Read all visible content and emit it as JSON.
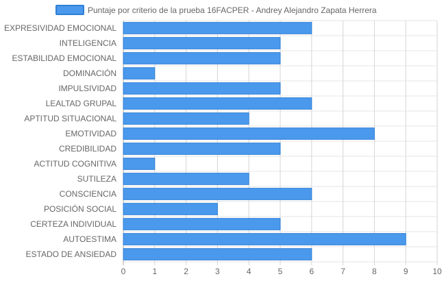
{
  "chart_data": {
    "type": "bar",
    "orientation": "horizontal",
    "categories": [
      "EXPRESIVIDAD EMOCIONAL",
      "INTELIGENCIA",
      "ESTABILIDAD EMOCIONAL",
      "DOMINACIÓN",
      "IMPULSIVIDAD",
      "LEALTAD GRUPAL",
      "APTITUD SITUACIONAL",
      "EMOTIVIDAD",
      "CREDIBILIDAD",
      "ACTITUD COGNITIVA",
      "SUTILEZA",
      "CONSCIENCIA",
      "POSICIÓN SOCIAL",
      "CERTEZA INDIVIDUAL",
      "AUTOESTIMA",
      "ESTADO DE ANSIEDAD"
    ],
    "series": [
      {
        "name": "Puntaje por criterio de la prueba 16FACPER - Andrey Alejandro Zapata Herrera",
        "values": [
          6,
          5,
          5,
          1,
          5,
          6,
          4,
          8,
          5,
          1,
          4,
          6,
          3,
          5,
          9,
          6
        ],
        "color": "#4a99ec",
        "border_color": "#2f7fd6"
      }
    ],
    "xlim": [
      0,
      10
    ],
    "x_ticks": [
      "0",
      "1",
      "2",
      "3",
      "4",
      "5",
      "6",
      "7",
      "8",
      "9",
      "10"
    ],
    "grid": true,
    "legend_position": "top"
  }
}
